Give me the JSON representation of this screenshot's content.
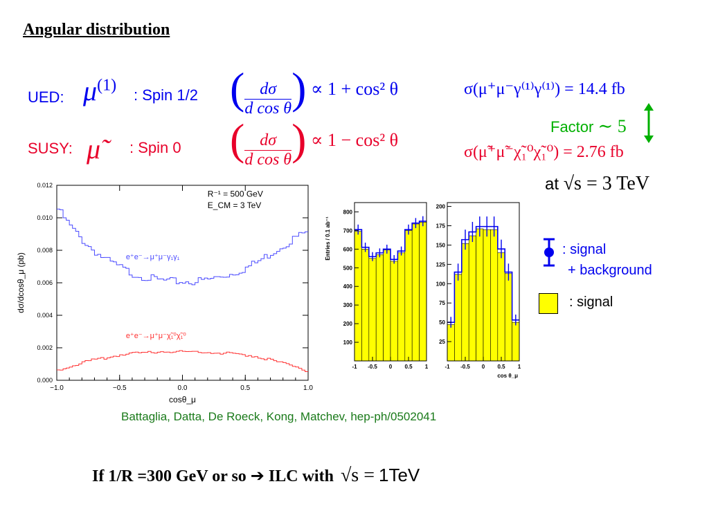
{
  "slide": {
    "title": "Angular distribution",
    "ued_label": "UED:",
    "susy_label": "SUSY:",
    "mu_symbol": "μ",
    "mu_superscript": "(1)",
    "mu_tilde_symbol": "μ̃",
    "ued_spin": ": Spin 1/2",
    "susy_spin": ": Spin 0",
    "ued_eq_num": "dσ",
    "ued_eq_den": "d cos θ",
    "ued_eq_rhs": "∝ 1 + cos² θ",
    "susy_eq_num": "dσ",
    "susy_eq_den": "d cos θ",
    "susy_eq_rhs": "∝ 1 − cos² θ",
    "ued_xsec": "σ(μ⁺μ⁻γ⁽¹⁾γ⁽¹⁾) = 14.4 fb",
    "susy_xsec": "σ(μ̃⁺μ̃⁻χ̃₁⁰χ̃₁⁰) = 2.76 fb",
    "factor_label": "Factor",
    "factor_value": "∼ 5",
    "at_label": "at",
    "at_value": "√s = 3 TeV",
    "legend_signal_bg_1": ": signal",
    "legend_signal_bg_2": "+ background",
    "legend_signal": ": signal",
    "citation": "Battaglia, Datta, De Roeck, Kong, Matchev, hep-ph/0502041",
    "bottom_text": "If 1/R =300 GeV or so",
    "bottom_arrow": "➔",
    "bottom_text2": "ILC with",
    "bottom_sqrt": "√s =",
    "bottom_tev": "1TeV",
    "colors": {
      "ued": "#0000ee",
      "susy": "#e8002a",
      "factor": "#00b000",
      "citation": "#1a7a1a",
      "hist_fill": "#ffff00",
      "hist_line": "#0000ee"
    }
  },
  "chart_data": [
    {
      "type": "line",
      "info_line1": "R⁻¹ = 500 GeV",
      "info_line2": "E_CM = 3 TeV",
      "xlabel": "cosθ_μ",
      "ylabel": "dσ/dcosθ_μ (pb)",
      "xlim": [
        -1.0,
        1.0
      ],
      "ylim": [
        0.0,
        0.012
      ],
      "xticks": [
        "−1.0",
        "−0.5",
        "0.0",
        "0.5",
        "1.0"
      ],
      "yticks": [
        "0.000",
        "0.002",
        "0.004",
        "0.006",
        "0.008",
        "0.010",
        "0.012"
      ],
      "series": [
        {
          "name": "e⁺e⁻→μ⁺μ⁻γ₁γ₁",
          "color": "#4a4aff",
          "x": [
            -1.0,
            -0.9,
            -0.8,
            -0.7,
            -0.6,
            -0.5,
            -0.4,
            -0.3,
            -0.2,
            -0.1,
            0.0,
            0.1,
            0.2,
            0.3,
            0.4,
            0.5,
            0.6,
            0.7,
            0.8,
            0.9,
            1.0
          ],
          "y": [
            0.0108,
            0.0097,
            0.0088,
            0.0081,
            0.0075,
            0.0071,
            0.0067,
            0.0065,
            0.0063,
            0.0062,
            0.0062,
            0.0062,
            0.0063,
            0.0065,
            0.0067,
            0.007,
            0.0074,
            0.0079,
            0.0084,
            0.0089,
            0.0093
          ]
        },
        {
          "name": "e⁺e⁻→μ⁺μ⁻χ̃₁⁰χ̃₁⁰",
          "color": "#ff3030",
          "x": [
            -1.0,
            -0.9,
            -0.8,
            -0.7,
            -0.6,
            -0.5,
            -0.4,
            -0.3,
            -0.2,
            -0.1,
            0.0,
            0.1,
            0.2,
            0.3,
            0.4,
            0.5,
            0.6,
            0.7,
            0.8,
            0.9,
            1.0
          ],
          "y": [
            0.0006,
            0.0009,
            0.0011,
            0.0013,
            0.0014,
            0.0016,
            0.0017,
            0.0017,
            0.0018,
            0.0018,
            0.0018,
            0.0018,
            0.0018,
            0.0017,
            0.0017,
            0.0016,
            0.0015,
            0.0013,
            0.0011,
            0.0009,
            0.0006
          ]
        }
      ]
    },
    {
      "type": "bar",
      "ylabel": "Entries / 0.1 ab⁻¹",
      "xlim": [
        -1,
        1
      ],
      "ylim": [
        0,
        850
      ],
      "xticks": [
        "-1",
        "-0.5",
        "0",
        "0.5",
        "1"
      ],
      "yticks": [
        "100",
        "200",
        "300",
        "400",
        "500",
        "600",
        "700",
        "800"
      ],
      "bin_edges": [
        -1.0,
        -0.8,
        -0.6,
        -0.4,
        -0.2,
        0.0,
        0.2,
        0.4,
        0.6,
        0.8,
        1.0
      ],
      "signal": [
        695,
        600,
        550,
        570,
        595,
        535,
        580,
        700,
        735,
        745
      ],
      "signal_plus_background": [
        705,
        610,
        560,
        580,
        600,
        545,
        590,
        705,
        740,
        750
      ],
      "errors": [
        27,
        25,
        24,
        24,
        24,
        23,
        24,
        27,
        27,
        27
      ]
    },
    {
      "type": "bar",
      "xlabel": "cos θ_μ",
      "xlim": [
        -1,
        1
      ],
      "ylim": [
        0,
        205
      ],
      "xticks": [
        "-1",
        "-0.5",
        "0",
        "0.5",
        "1"
      ],
      "yticks": [
        "25",
        "50",
        "75",
        "100",
        "125",
        "150",
        "175",
        "200"
      ],
      "bin_edges": [
        -1.0,
        -0.8,
        -0.6,
        -0.4,
        -0.2,
        0.0,
        0.2,
        0.4,
        0.6,
        0.8,
        1.0
      ],
      "signal": [
        47,
        112,
        152,
        162,
        171,
        170,
        170,
        140,
        113,
        50
      ],
      "signal_plus_background": [
        50,
        115,
        157,
        167,
        174,
        174,
        174,
        145,
        115,
        53
      ],
      "errors": [
        7,
        11,
        13,
        13,
        13,
        13,
        13,
        12,
        11,
        7
      ]
    }
  ]
}
